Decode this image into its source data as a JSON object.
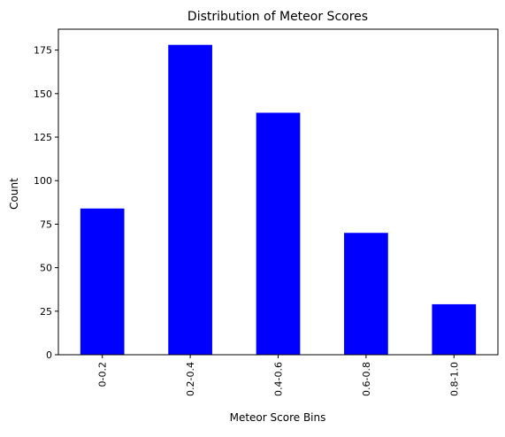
{
  "chart_data": {
    "type": "bar",
    "title": "Distribution of Meteor Scores",
    "xlabel": "Meteor Score Bins",
    "ylabel": "Count",
    "categories": [
      "0-0.2",
      "0.2-0.4",
      "0.4-0.6",
      "0.6-0.8",
      "0.8-1.0"
    ],
    "values": [
      84,
      178,
      139,
      70,
      29
    ],
    "ylim": [
      0,
      187
    ],
    "yticks": [
      0,
      25,
      50,
      75,
      100,
      125,
      150,
      175
    ],
    "bar_color": "#0000ff",
    "grid": false,
    "legend": "none"
  }
}
